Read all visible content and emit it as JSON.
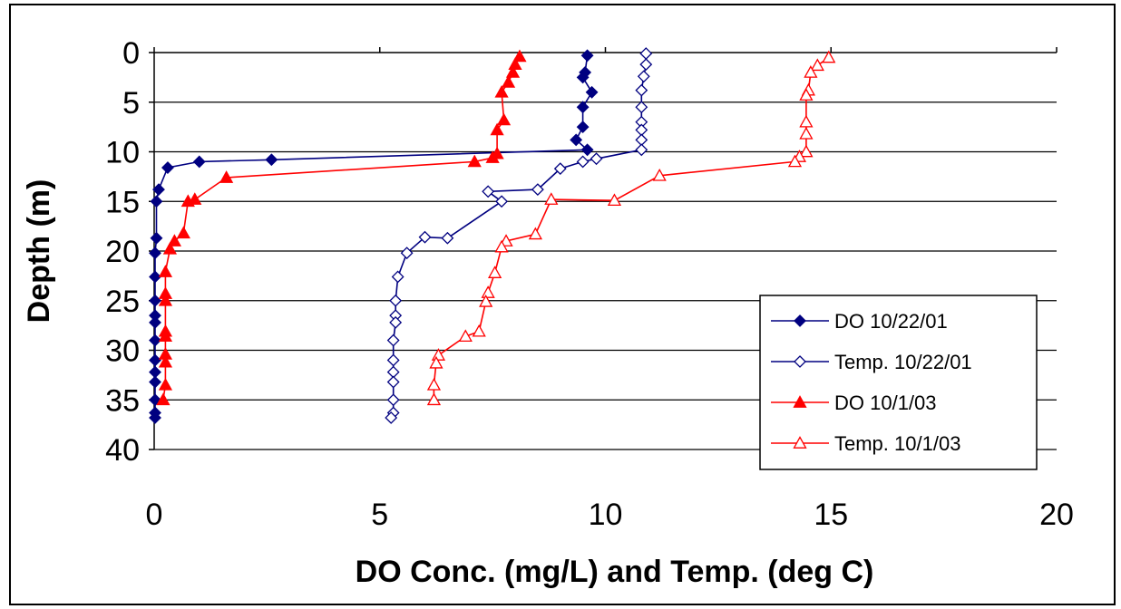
{
  "chart_data": {
    "type": "scatter",
    "title": "",
    "xlabel": "DO Conc. (mg/L) and Temp. (deg C)",
    "ylabel": "Depth (m)",
    "xlim": [
      0,
      20
    ],
    "ylim": [
      0,
      40
    ],
    "y_inverted": true,
    "xticks": [
      "0",
      "5",
      "10",
      "15",
      "20"
    ],
    "yticks": [
      "0",
      "5",
      "10",
      "15",
      "20",
      "25",
      "30",
      "35",
      "40"
    ],
    "grid": "horizontal",
    "legend_position": "bottom-right",
    "series": [
      {
        "name": "DO 10/22/01",
        "color": "#000080",
        "marker": "diamond",
        "filled": true,
        "points": [
          [
            9.6,
            0.3
          ],
          [
            9.55,
            2
          ],
          [
            9.5,
            2.5
          ],
          [
            9.7,
            4
          ],
          [
            9.5,
            5.5
          ],
          [
            9.5,
            7.5
          ],
          [
            9.35,
            8.8
          ],
          [
            9.6,
            9.8
          ],
          [
            2.6,
            10.8
          ],
          [
            1.0,
            11
          ],
          [
            0.3,
            11.6
          ],
          [
            0.1,
            13.8
          ],
          [
            0.05,
            15
          ],
          [
            0.05,
            18.7
          ],
          [
            0.02,
            20.2
          ],
          [
            0.02,
            22.6
          ],
          [
            0.02,
            25
          ],
          [
            0.02,
            26.5
          ],
          [
            0.02,
            27.2
          ],
          [
            0.02,
            29
          ],
          [
            0.02,
            31
          ],
          [
            0.02,
            32.2
          ],
          [
            0.02,
            33.2
          ],
          [
            0.02,
            35
          ],
          [
            0.02,
            36.3
          ],
          [
            0.02,
            36.8
          ]
        ]
      },
      {
        "name": "Temp. 10/22/01",
        "color": "#000080",
        "marker": "diamond",
        "filled": false,
        "points": [
          [
            10.9,
            0.1
          ],
          [
            10.9,
            1.2
          ],
          [
            10.85,
            2.4
          ],
          [
            10.8,
            3.8
          ],
          [
            10.8,
            5.5
          ],
          [
            10.8,
            7
          ],
          [
            10.8,
            7.8
          ],
          [
            10.8,
            8.8
          ],
          [
            10.8,
            9.8
          ],
          [
            9.8,
            10.7
          ],
          [
            9.5,
            11
          ],
          [
            9.0,
            11.7
          ],
          [
            8.5,
            13.8
          ],
          [
            7.4,
            14
          ],
          [
            7.7,
            15
          ],
          [
            6.5,
            18.7
          ],
          [
            6.0,
            18.6
          ],
          [
            5.6,
            20.2
          ],
          [
            5.4,
            22.6
          ],
          [
            5.35,
            25
          ],
          [
            5.35,
            26.5
          ],
          [
            5.35,
            27.2
          ],
          [
            5.3,
            29
          ],
          [
            5.3,
            31
          ],
          [
            5.3,
            32.2
          ],
          [
            5.3,
            33.2
          ],
          [
            5.3,
            35
          ],
          [
            5.3,
            36.3
          ],
          [
            5.25,
            36.8
          ]
        ]
      },
      {
        "name": "DO 10/1/03",
        "color": "#FF0000",
        "marker": "triangle",
        "filled": true,
        "points": [
          [
            8.1,
            0.4
          ],
          [
            8.0,
            1.2
          ],
          [
            7.95,
            2
          ],
          [
            7.85,
            3
          ],
          [
            7.7,
            4
          ],
          [
            7.75,
            6.8
          ],
          [
            7.6,
            7.8
          ],
          [
            7.6,
            10.2
          ],
          [
            7.5,
            10.6
          ],
          [
            7.1,
            11
          ],
          [
            1.6,
            12.6
          ],
          [
            0.9,
            14.8
          ],
          [
            0.75,
            15
          ],
          [
            0.65,
            18.2
          ],
          [
            0.45,
            19
          ],
          [
            0.35,
            19.8
          ],
          [
            0.25,
            22.1
          ],
          [
            0.25,
            24.3
          ],
          [
            0.25,
            25
          ],
          [
            0.25,
            28.1
          ],
          [
            0.25,
            28.6
          ],
          [
            0.25,
            30.4
          ],
          [
            0.25,
            31.2
          ],
          [
            0.25,
            33.5
          ],
          [
            0.2,
            35
          ]
        ]
      },
      {
        "name": "Temp. 10/1/03",
        "color": "#FF0000",
        "marker": "triangle",
        "filled": false,
        "points": [
          [
            14.95,
            0.5
          ],
          [
            14.7,
            1.3
          ],
          [
            14.55,
            2
          ],
          [
            14.5,
            3.8
          ],
          [
            14.45,
            4.3
          ],
          [
            14.45,
            7
          ],
          [
            14.45,
            8.2
          ],
          [
            14.45,
            10
          ],
          [
            14.3,
            10.5
          ],
          [
            14.2,
            11
          ],
          [
            11.2,
            12.4
          ],
          [
            10.2,
            14.9
          ],
          [
            8.8,
            14.8
          ],
          [
            8.45,
            18.3
          ],
          [
            7.8,
            19
          ],
          [
            7.7,
            19.6
          ],
          [
            7.55,
            22.2
          ],
          [
            7.4,
            24.2
          ],
          [
            7.35,
            25.1
          ],
          [
            7.2,
            28.1
          ],
          [
            6.9,
            28.6
          ],
          [
            6.3,
            30.5
          ],
          [
            6.25,
            31.3
          ],
          [
            6.2,
            33.5
          ],
          [
            6.2,
            35
          ]
        ]
      }
    ]
  }
}
